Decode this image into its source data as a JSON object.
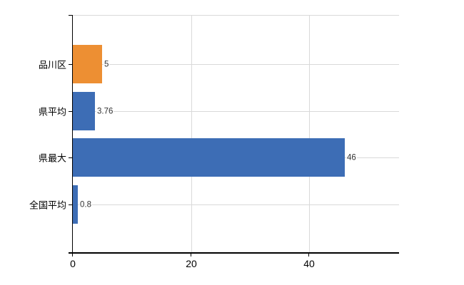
{
  "chart_data": {
    "type": "bar",
    "orientation": "horizontal",
    "title": "",
    "xlabel": "",
    "ylabel": "",
    "categories": [
      "品川区",
      "県平均",
      "県最大",
      "全国平均"
    ],
    "values": [
      5,
      3.76,
      46,
      0.8
    ],
    "value_labels": [
      "5",
      "3.76",
      "46",
      "0.8"
    ],
    "bar_colors": [
      "#ed8f33",
      "#3d6db5",
      "#3d6db5",
      "#3d6db5"
    ],
    "highlight_index": 0,
    "x_ticks": [
      0,
      20,
      40
    ],
    "x_tick_labels": [
      "0",
      "20",
      "40"
    ],
    "xlim": [
      0,
      55.2
    ],
    "grid": true,
    "legend": false,
    "colors": {
      "background": "#ffffff",
      "grid": "#d9d9d9",
      "axis": "#000000",
      "tick_label": "#000000",
      "category_label": "#000000",
      "value_label": "#333333"
    }
  }
}
